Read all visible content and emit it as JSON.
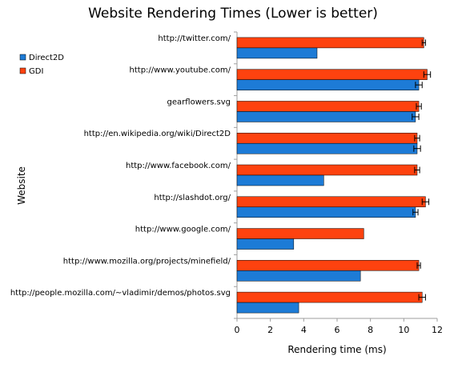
{
  "colors": {
    "direct2d": "#1d7bd6",
    "gdi": "#fe420f",
    "axis": "#9e9e9e",
    "grid": "#c8c8c8"
  },
  "chart_data": {
    "type": "bar",
    "orientation": "horizontal",
    "title": "Website Rendering Times (Lower is better)",
    "xlabel": "Rendering time (ms)",
    "ylabel": "Website",
    "xlim": [
      0,
      12
    ],
    "xticks": [
      0,
      2,
      4,
      6,
      8,
      10,
      12
    ],
    "grid": false,
    "legend_position": "left",
    "categories": [
      "http://twitter.com/",
      "http://www.youtube.com/",
      "gearflowers.svg",
      "http://en.wikipedia.org/wiki/Direct2D",
      "http://www.facebook.com/",
      "http://slashdot.org/",
      "http://www.google.com/",
      "http://www.mozilla.org/projects/minefield/",
      "http://people.mozilla.com/~vladimir/demos/photos.svg"
    ],
    "series": [
      {
        "name": "Direct2D",
        "values": [
          4.8,
          10.9,
          10.7,
          10.8,
          5.2,
          10.7,
          3.4,
          7.4,
          3.7
        ],
        "errors": [
          0,
          0.2,
          0.2,
          0.2,
          0,
          0.15,
          0,
          0,
          0
        ]
      },
      {
        "name": "GDI",
        "values": [
          11.2,
          11.4,
          10.9,
          10.8,
          10.8,
          11.3,
          7.6,
          10.9,
          11.1
        ],
        "errors": [
          0.1,
          0.2,
          0.15,
          0.15,
          0.15,
          0.2,
          0,
          0.1,
          0.2
        ]
      }
    ]
  }
}
